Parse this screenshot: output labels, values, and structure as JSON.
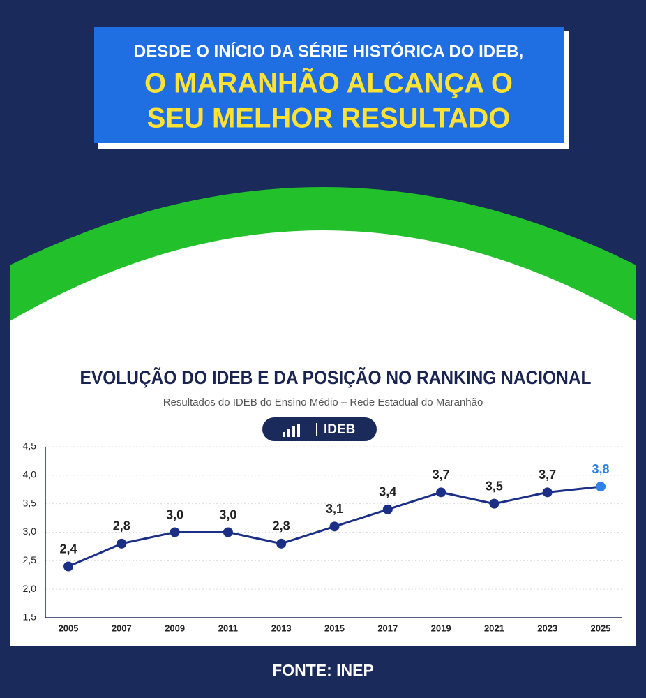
{
  "header": {
    "line1": "DESDE O INÍCIO DA SÉRIE HISTÓRICA DO IDEB,",
    "line2": "O MARANHÃO ALCANÇA O",
    "line3": "SEU MELHOR RESULTADO"
  },
  "chart_data": {
    "type": "line",
    "title": "EVOLUÇÃO DO IDEB E DA POSIÇÃO NO RANKING NACIONAL",
    "subtitle": "Resultados do IDEB do Ensino Médio – Rede Estadual do Maranhão",
    "categories": [
      "2005",
      "2007",
      "2009",
      "2011",
      "2013",
      "2015",
      "2017",
      "2019",
      "2021",
      "2023",
      "2025"
    ],
    "series": [
      {
        "name": "IDEB",
        "color": "#1c2f86",
        "values": [
          2.4,
          2.8,
          3.0,
          3.0,
          2.8,
          3.1,
          3.4,
          3.7,
          3.5,
          3.7,
          3.8
        ],
        "value_labels": [
          "2,4",
          "2,8",
          "3,0",
          "3,0",
          "2,8",
          "3,1",
          "3,4",
          "3,7",
          "3,5",
          "3,7",
          "3,8"
        ]
      }
    ],
    "highlight_color": "#2f80e8",
    "ylim": [
      1.5,
      4.5
    ],
    "yticks": [
      {
        "value": 1.5,
        "label": "1,5"
      },
      {
        "value": 2.0,
        "label": "2,0"
      },
      {
        "value": 2.5,
        "label": "2,5"
      },
      {
        "value": 3.0,
        "label": "3,0"
      },
      {
        "value": 3.5,
        "label": "3,5"
      },
      {
        "value": 4.0,
        "label": "4,0"
      },
      {
        "value": 4.5,
        "label": "4,5"
      }
    ],
    "grid": true
  },
  "source": "FONTE: INEP"
}
